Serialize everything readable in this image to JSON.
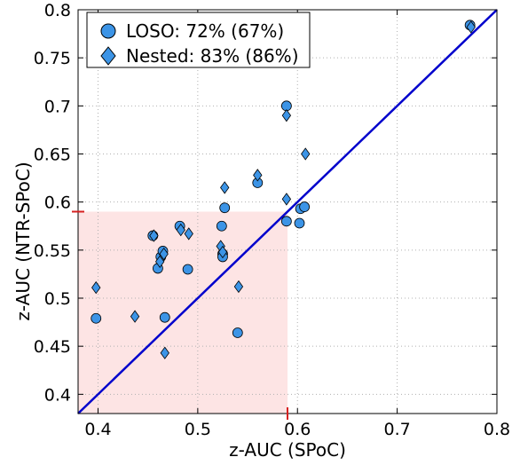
{
  "chart_data": {
    "type": "scatter",
    "title": "",
    "xlabel": "z-AUC (SPoC)",
    "ylabel": "z-AUC (NTR-SPoC)",
    "xlim": [
      0.38,
      0.8
    ],
    "ylim": [
      0.38,
      0.8
    ],
    "x_ticks": [
      "0.4",
      "0.5",
      "0.6",
      "0.7",
      "0.8"
    ],
    "y_ticks": [
      "0.4",
      "0.45",
      "0.5",
      "0.55",
      "0.6",
      "0.65",
      "0.7",
      "0.75",
      "0.8"
    ],
    "grid": true,
    "legend_position": "top-left",
    "highlight_region": {
      "x": [
        0.38,
        0.59
      ],
      "y": [
        0.38,
        0.59
      ],
      "color": "#fde4e4"
    },
    "threshold_marker_color": "#d62020",
    "identity_line": {
      "from": [
        0.38,
        0.38
      ],
      "to": [
        0.8,
        0.8
      ],
      "color": "#0000cc"
    },
    "marker_color": "#3c94e6",
    "series": [
      {
        "name": "LOSO: 72% (67%)",
        "marker": "circle",
        "points": [
          [
            0.398,
            0.479
          ],
          [
            0.455,
            0.565
          ],
          [
            0.46,
            0.531
          ],
          [
            0.463,
            0.543
          ],
          [
            0.465,
            0.549
          ],
          [
            0.467,
            0.48
          ],
          [
            0.482,
            0.575
          ],
          [
            0.49,
            0.53
          ],
          [
            0.524,
            0.575
          ],
          [
            0.525,
            0.546
          ],
          [
            0.525,
            0.543
          ],
          [
            0.527,
            0.594
          ],
          [
            0.54,
            0.464
          ],
          [
            0.56,
            0.62
          ],
          [
            0.589,
            0.7
          ],
          [
            0.589,
            0.58
          ],
          [
            0.602,
            0.578
          ],
          [
            0.603,
            0.593
          ],
          [
            0.607,
            0.595
          ],
          [
            0.773,
            0.784
          ]
        ]
      },
      {
        "name": "Nested: 83% (86%)",
        "marker": "diamond",
        "points": [
          [
            0.398,
            0.511
          ],
          [
            0.437,
            0.481
          ],
          [
            0.456,
            0.565
          ],
          [
            0.462,
            0.538
          ],
          [
            0.466,
            0.546
          ],
          [
            0.467,
            0.443
          ],
          [
            0.483,
            0.571
          ],
          [
            0.491,
            0.567
          ],
          [
            0.523,
            0.554
          ],
          [
            0.525,
            0.548
          ],
          [
            0.527,
            0.615
          ],
          [
            0.541,
            0.512
          ],
          [
            0.56,
            0.628
          ],
          [
            0.589,
            0.69
          ],
          [
            0.589,
            0.603
          ],
          [
            0.608,
            0.65
          ],
          [
            0.774,
            0.782
          ]
        ]
      }
    ]
  }
}
